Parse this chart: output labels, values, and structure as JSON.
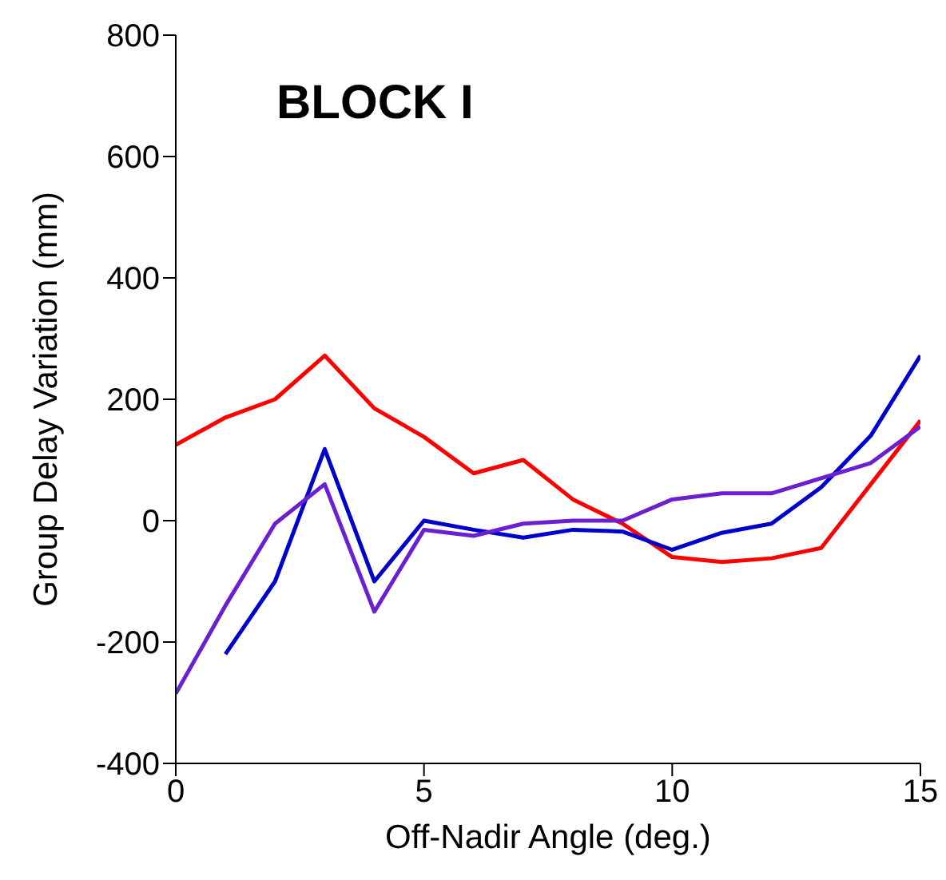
{
  "chart_data": {
    "type": "line",
    "xlabel": "Off-Nadir Angle (deg.)",
    "ylabel": "Group Delay Variation (mm)",
    "annotations": [
      "BLOCK I"
    ],
    "x": [
      0,
      1,
      2,
      3,
      4,
      5,
      6,
      7,
      8,
      9,
      10,
      11,
      12,
      13,
      14,
      15
    ],
    "series": [
      {
        "color": "#ff0000",
        "values": [
          125,
          170,
          200,
          272,
          185,
          138,
          78,
          100,
          35,
          -5,
          -60,
          -68,
          -62,
          -45,
          60,
          165
        ]
      },
      {
        "color": "#0000cc",
        "values": [
          null,
          -220,
          -100,
          118,
          -100,
          0,
          -15,
          -28,
          -15,
          -18,
          -48,
          -20,
          -5,
          55,
          140,
          272
        ]
      },
      {
        "color": "#6a1fd0",
        "values": [
          -285,
          -140,
          -5,
          60,
          -150,
          -15,
          -25,
          -5,
          0,
          0,
          35,
          45,
          45,
          70,
          95,
          155
        ]
      }
    ],
    "xlim": [
      0,
      15
    ],
    "xticks": [
      0,
      5,
      10,
      15
    ],
    "ylim": [
      -400,
      800
    ],
    "yticks": [
      -400,
      -200,
      0,
      200,
      400,
      600,
      800
    ],
    "grid": false,
    "legend": false,
    "marker": "none",
    "line_style": "solid"
  }
}
